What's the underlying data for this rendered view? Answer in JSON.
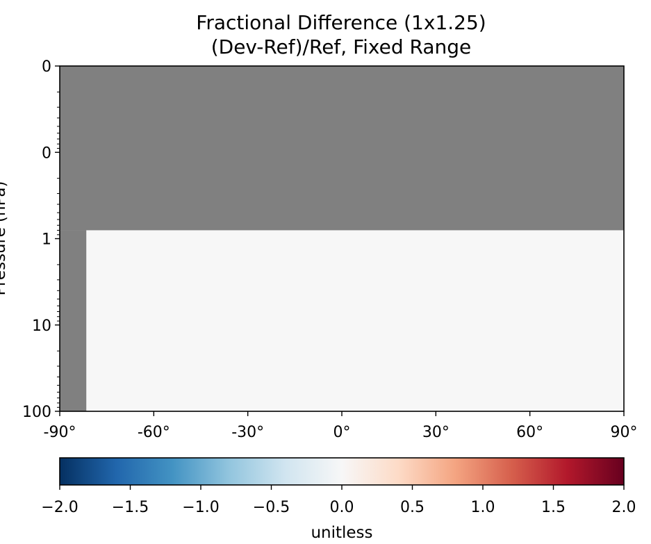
{
  "chart_data": {
    "type": "heatmap",
    "title_line1": "Fractional Difference (1x1.25)",
    "title_line2": "(Dev-Ref)/Ref, Fixed Range",
    "ylabel": "Pressure (hPa)",
    "y_scale": "log",
    "y_inverted": true,
    "ylim": [
      0.01,
      100
    ],
    "y_tick_values": [
      0.01,
      0.1,
      1,
      10,
      100
    ],
    "y_tick_labels": [
      "0",
      "0",
      "1",
      "10",
      "100"
    ],
    "xlim": [
      -90,
      90
    ],
    "x_tick_values": [
      -90,
      -60,
      -30,
      0,
      30,
      60,
      90
    ],
    "x_tick_labels": [
      "-90°",
      "-60°",
      "-30°",
      "0°",
      "30°",
      "60°",
      "90°"
    ],
    "missing_color": "#808080",
    "regions": [
      {
        "name": "no data",
        "x": [
          -90,
          90
        ],
        "y": [
          0.01,
          0.8
        ],
        "value": null
      },
      {
        "name": "no data",
        "x": [
          -90,
          -81.5
        ],
        "y": [
          0.8,
          100
        ],
        "value": null
      },
      {
        "name": "data",
        "x": [
          -81.5,
          90
        ],
        "y": [
          0.8,
          100
        ],
        "value": 0.0
      }
    ],
    "colorbar": {
      "colormap": "RdBu_r",
      "range": [
        -2.0,
        2.0
      ],
      "ticks": [
        -2.0,
        -1.5,
        -1.0,
        -0.5,
        0.0,
        0.5,
        1.0,
        1.5,
        2.0
      ],
      "tick_labels": [
        "−2.0",
        "−1.5",
        "−1.0",
        "−0.5",
        "0.0",
        "0.5",
        "1.0",
        "1.5",
        "2.0"
      ],
      "label": "unitless",
      "colors": [
        "#053061",
        "#2166ac",
        "#4393c3",
        "#92c5de",
        "#d1e5f0",
        "#f7f7f7",
        "#fddbc7",
        "#f4a582",
        "#d6604d",
        "#b2182b",
        "#67001f"
      ]
    }
  }
}
